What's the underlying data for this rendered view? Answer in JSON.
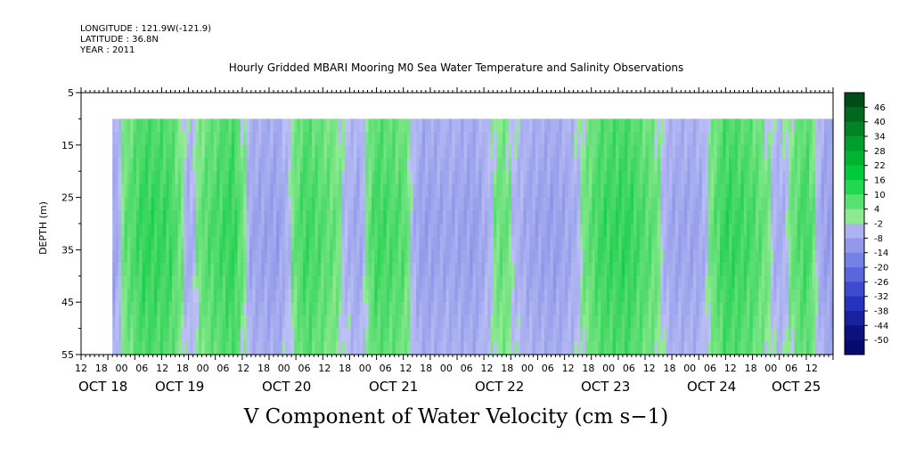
{
  "header": {
    "longitude": "LONGITUDE : 121.9W(-121.9)",
    "latitude": "LATITUDE : 36.8N",
    "year": "YEAR : 2011"
  },
  "chart_data": {
    "type": "heatmap",
    "title": "Hourly Gridded MBARI Mooring M0 Sea Water Temperature and Salinity Observations",
    "xlabel": "V Component of Water Velocity (cm s−1)",
    "ylabel": "DEPTH (m)",
    "y_ticks": [
      5,
      15,
      25,
      35,
      45,
      55
    ],
    "ylim": [
      55,
      5
    ],
    "data_depth_range": [
      10,
      55
    ],
    "x_hour_ticks": [
      "12",
      "18",
      "00",
      "06",
      "12",
      "18",
      "00",
      "06",
      "12",
      "18",
      "00",
      "06",
      "12",
      "18",
      "00",
      "06",
      "12",
      "18",
      "00",
      "06",
      "12",
      "18",
      "00",
      "06",
      "12",
      "18",
      "00",
      "06",
      "12",
      "18",
      "00",
      "06",
      "12",
      "18",
      "00",
      "06",
      "12"
    ],
    "x_date_labels": [
      "OCT 18",
      "OCT 19",
      "OCT 20",
      "OCT 21",
      "OCT 22",
      "OCT 23",
      "OCT 24",
      "OCT 25"
    ],
    "x_range_hours": [
      0,
      168
    ],
    "data_start_hour": 7,
    "colorbar_levels": [
      46,
      40,
      34,
      28,
      22,
      16,
      10,
      4,
      -2,
      -8,
      -14,
      -20,
      -26,
      -32,
      -38,
      -44,
      -50
    ],
    "color_range": [
      -50,
      50
    ],
    "band_hours": [
      7,
      10,
      14,
      20,
      24,
      28,
      34,
      38,
      44,
      50,
      56,
      62,
      66,
      72,
      76,
      82,
      88,
      94,
      100,
      106,
      110,
      116,
      122,
      128,
      132,
      138,
      144,
      150,
      156,
      162,
      166
    ],
    "band_values": [
      -8,
      4,
      12,
      10,
      -4,
      6,
      12,
      -6,
      -8,
      10,
      4,
      -6,
      10,
      6,
      -8,
      -6,
      -8,
      4,
      -6,
      -8,
      -4,
      10,
      12,
      4,
      -6,
      -6,
      12,
      8,
      -4,
      10,
      -8
    ],
    "depth_anomaly": [
      0,
      2,
      4,
      4,
      2,
      0
    ]
  },
  "colors": {
    "background": "#ffffff",
    "frame": "#000000"
  }
}
